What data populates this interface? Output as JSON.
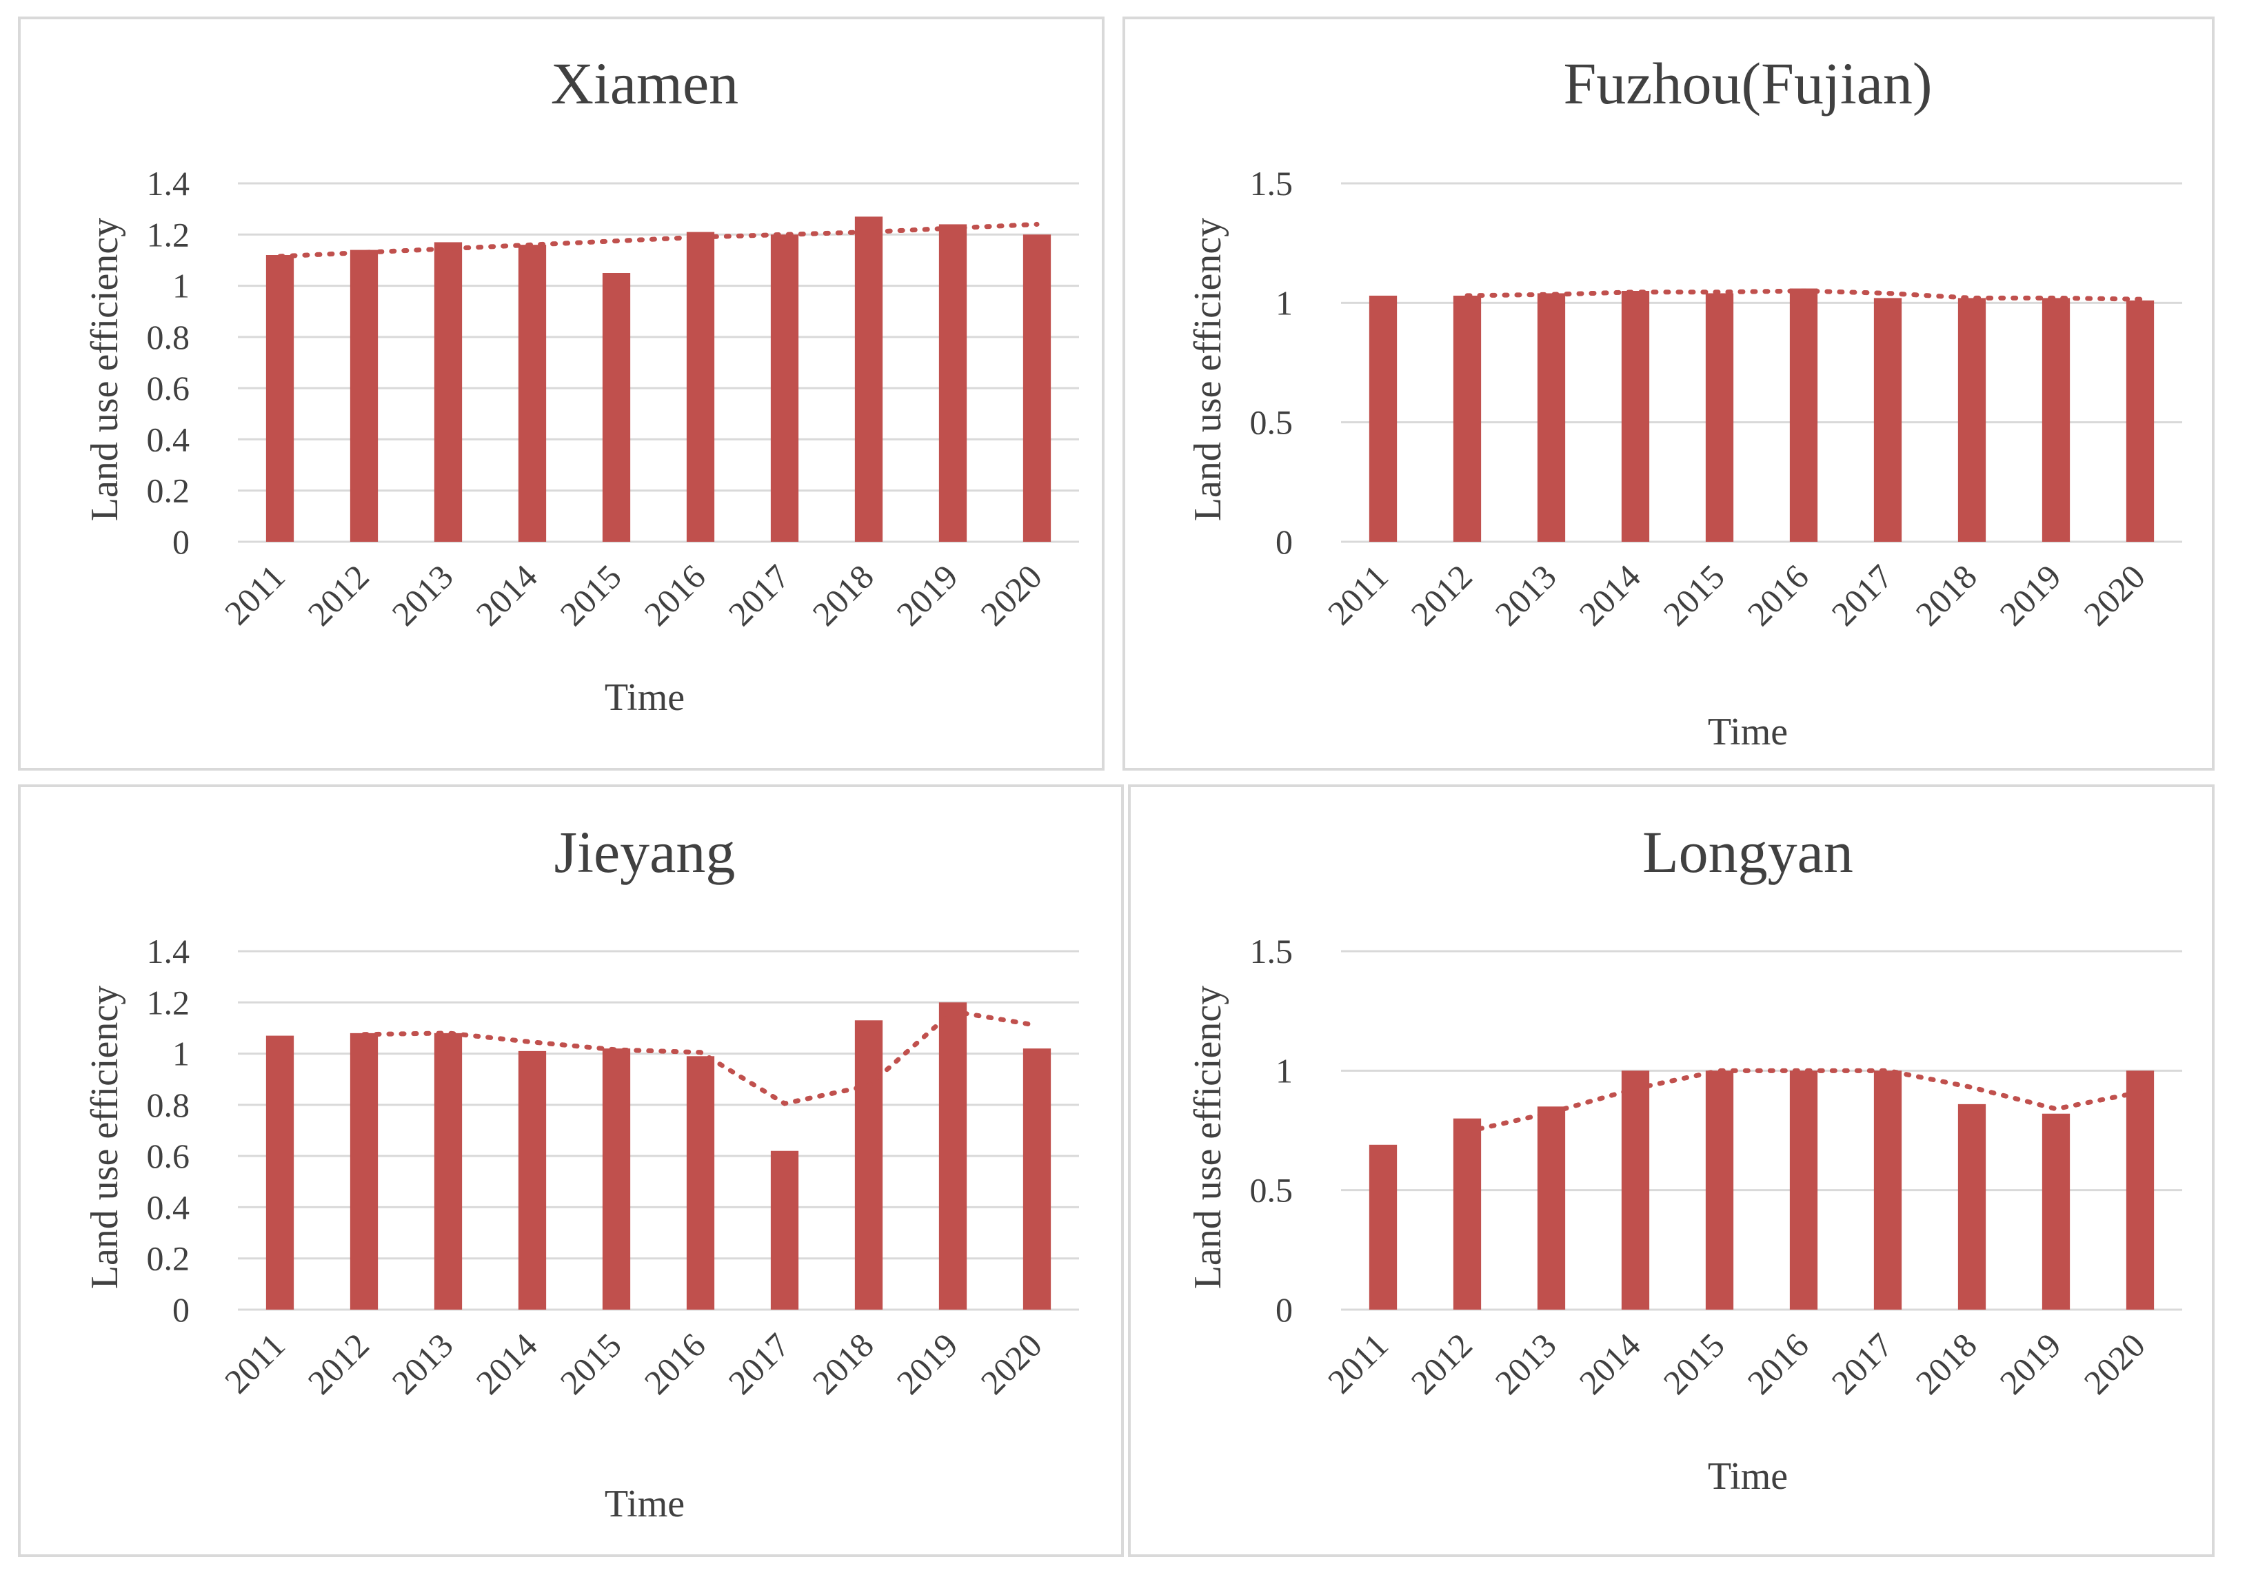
{
  "figure": {
    "background": "#ffffff",
    "border_color": "#d9d9d9"
  },
  "chart_data": [
    {
      "type": "bar",
      "title": "Xiamen",
      "xlabel": "Time",
      "ylabel": "Land use efficiency",
      "categories": [
        "2011",
        "2012",
        "2013",
        "2014",
        "2015",
        "2016",
        "2017",
        "2018",
        "2019",
        "2020"
      ],
      "series": [
        {
          "values": [
            1.12,
            1.14,
            1.17,
            1.16,
            1.05,
            1.21,
            1.2,
            1.27,
            1.24,
            1.2
          ],
          "color": "#c0504d"
        }
      ],
      "trendline": {
        "style": "dotted",
        "kind": "linear",
        "values": [
          1.115,
          1.13,
          1.145,
          1.16,
          1.175,
          1.19,
          1.2,
          1.21,
          1.225,
          1.24
        ]
      },
      "yticks": [
        "0",
        "0.2",
        "0.4",
        "0.6",
        "0.8",
        "1",
        "1.2",
        "1.4"
      ],
      "ylim": [
        0,
        1.4
      ],
      "grid": true,
      "legend": "none"
    },
    {
      "type": "bar",
      "title": "Fuzhou(Fujian)",
      "xlabel": "Time",
      "ylabel": "Land use efficiency",
      "categories": [
        "2011",
        "2012",
        "2013",
        "2014",
        "2015",
        "2016",
        "2017",
        "2018",
        "2019",
        "2020"
      ],
      "series": [
        {
          "values": [
            1.03,
            1.03,
            1.04,
            1.05,
            1.04,
            1.06,
            1.02,
            1.02,
            1.02,
            1.01
          ],
          "color": "#c0504d"
        }
      ],
      "trendline": {
        "style": "dotted",
        "kind": "moving average",
        "values": [
          null,
          1.03,
          1.035,
          1.045,
          1.045,
          1.05,
          1.04,
          1.02,
          1.02,
          1.015
        ]
      },
      "yticks": [
        "0",
        "0.5",
        "1",
        "1.5"
      ],
      "ylim": [
        0,
        1.5
      ],
      "grid": true,
      "legend": "none"
    },
    {
      "type": "bar",
      "title": "Jieyang",
      "xlabel": "Time",
      "ylabel": "Land use efficiency",
      "categories": [
        "2011",
        "2012",
        "2013",
        "2014",
        "2015",
        "2016",
        "2017",
        "2018",
        "2019",
        "2020"
      ],
      "series": [
        {
          "values": [
            1.07,
            1.08,
            1.08,
            1.01,
            1.02,
            0.99,
            0.62,
            1.13,
            1.2,
            1.02
          ],
          "color": "#c0504d"
        }
      ],
      "trendline": {
        "style": "dotted",
        "kind": "moving average",
        "values": [
          null,
          1.075,
          1.08,
          1.045,
          1.015,
          1.005,
          0.805,
          0.875,
          1.165,
          1.11
        ]
      },
      "yticks": [
        "0",
        "0.2",
        "0.4",
        "0.6",
        "0.8",
        "1",
        "1.2",
        "1.4"
      ],
      "ylim": [
        0,
        1.4
      ],
      "grid": true,
      "legend": "none"
    },
    {
      "type": "bar",
      "title": "Longyan",
      "xlabel": "Time",
      "ylabel": "Land use efficiency",
      "categories": [
        "2011",
        "2012",
        "2013",
        "2014",
        "2015",
        "2016",
        "2017",
        "2018",
        "2019",
        "2020"
      ],
      "series": [
        {
          "values": [
            0.69,
            0.8,
            0.85,
            1.0,
            1.0,
            1.0,
            1.0,
            0.86,
            0.82,
            1.0
          ],
          "color": "#c0504d"
        }
      ],
      "trendline": {
        "style": "dotted",
        "kind": "moving average",
        "values": [
          null,
          0.745,
          0.825,
          0.925,
          1.0,
          1.0,
          1.0,
          0.93,
          0.84,
          0.91
        ]
      },
      "yticks": [
        "0",
        "0.5",
        "1",
        "1.5"
      ],
      "ylim": [
        0,
        1.5
      ],
      "grid": true,
      "legend": "none"
    }
  ]
}
